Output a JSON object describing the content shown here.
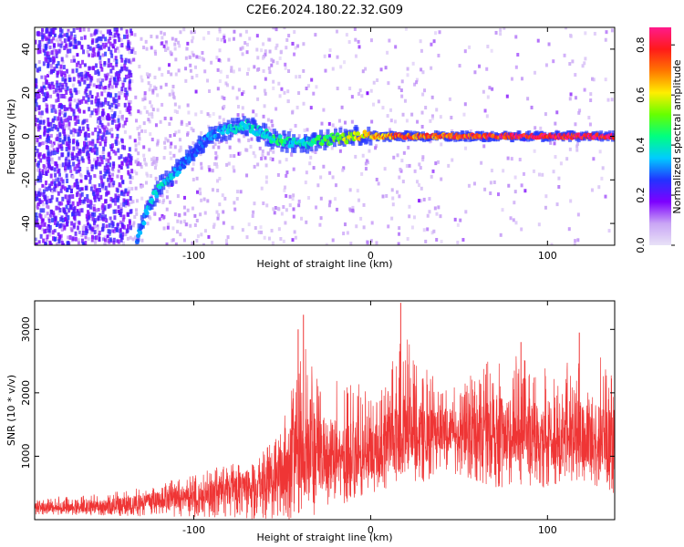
{
  "title": "C2E6.2024.180.22.32.G09",
  "colors": {
    "snr_line": "#ef3535",
    "spectrogram_colormap": [
      "#e8e2f7",
      "#c9a5f5",
      "#7d00ff",
      "#2233ff",
      "#00ccff",
      "#00ff80",
      "#66ff00",
      "#ffee00",
      "#ff7700",
      "#ff1a1a",
      "#ff1a8c"
    ]
  },
  "chart_data": [
    {
      "type": "heatmap",
      "name": "spectrogram",
      "xlabel": "Height of straight line (km)",
      "ylabel": "Frequency (Hz)",
      "xlim": [
        -190,
        138
      ],
      "ylim": [
        -50,
        50
      ],
      "xticks": [
        -100,
        0,
        100
      ],
      "yticks": [
        -40,
        -20,
        0,
        20,
        40
      ],
      "colorbar": {
        "label": "Normalized spectral amplitude",
        "range": [
          0,
          0.87
        ],
        "ticks": [
          0.0,
          0.2,
          0.4,
          0.6,
          0.8
        ]
      },
      "ridge": {
        "x": [
          -132,
          -128,
          -124,
          -120,
          -115,
          -110,
          -105,
          -100,
          -95,
          -90,
          -85,
          -80,
          -75,
          -70,
          -65,
          -60,
          -55,
          -50,
          -45,
          -40,
          -35,
          -30,
          -25,
          -20,
          -15,
          -10,
          -5,
          0,
          10,
          20,
          40,
          60,
          80,
          100,
          120,
          138
        ],
        "y": [
          -48,
          -38,
          -30,
          -24,
          -20,
          -16,
          -12,
          -8,
          -3,
          0,
          2,
          3,
          4,
          5,
          3,
          1,
          -1,
          -2,
          -3,
          -4,
          -3,
          -2,
          -2,
          -1,
          -1,
          0,
          0,
          0,
          0,
          0,
          0,
          0,
          0,
          0,
          0,
          0
        ],
        "amplitude": [
          0.3,
          0.33,
          0.36,
          0.4,
          0.38,
          0.34,
          0.3,
          0.28,
          0.3,
          0.32,
          0.34,
          0.36,
          0.38,
          0.4,
          0.38,
          0.4,
          0.42,
          0.45,
          0.4,
          0.4,
          0.42,
          0.45,
          0.48,
          0.5,
          0.55,
          0.6,
          0.62,
          0.65,
          0.7,
          0.75,
          0.75,
          0.78,
          0.8,
          0.82,
          0.85,
          0.85
        ]
      }
    },
    {
      "type": "line",
      "name": "snr",
      "xlabel": "Height of straight line (km)",
      "ylabel": "SNR (10 * v/v)",
      "xlim": [
        -190,
        138
      ],
      "ylim": [
        0,
        3450
      ],
      "xticks": [
        -100,
        0,
        100
      ],
      "yticks": [
        1000,
        2000,
        3000
      ],
      "envelope": {
        "x": [
          -190,
          -170,
          -150,
          -130,
          -110,
          -90,
          -70,
          -60,
          -50,
          -45,
          -40,
          -35,
          -30,
          -20,
          -10,
          0,
          10,
          15,
          20,
          30,
          40,
          50,
          60,
          70,
          80,
          90,
          100,
          110,
          120,
          130,
          138
        ],
        "upper": [
          380,
          360,
          420,
          520,
          650,
          800,
          950,
          1150,
          1500,
          2100,
          3100,
          2700,
          2300,
          2300,
          2200,
          2100,
          2300,
          2700,
          3300,
          2500,
          2100,
          2100,
          2400,
          2600,
          2600,
          2500,
          2450,
          2500,
          2600,
          2700,
          2250
        ],
        "lower": [
          80,
          70,
          60,
          50,
          40,
          30,
          0,
          0,
          0,
          0,
          0,
          0,
          50,
          200,
          300,
          350,
          500,
          600,
          600,
          600,
          700,
          700,
          600,
          500,
          500,
          500,
          500,
          600,
          500,
          500,
          400
        ],
        "center": [
          200,
          190,
          220,
          280,
          350,
          430,
          550,
          650,
          800,
          950,
          1100,
          1050,
          1000,
          1000,
          1050,
          1100,
          1200,
          1300,
          1350,
          1350,
          1400,
          1400,
          1400,
          1400,
          1350,
          1300,
          1300,
          1300,
          1300,
          1300,
          1250
        ],
        "spikes": [
          {
            "x": -38,
            "y": 3230
          },
          {
            "x": -41,
            "y": 3000
          },
          {
            "x": 17,
            "y": 3420
          },
          {
            "x": 118,
            "y": 2950
          },
          {
            "x": 85,
            "y": 2800
          }
        ]
      }
    }
  ]
}
